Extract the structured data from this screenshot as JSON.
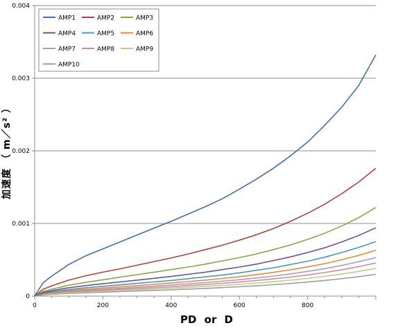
{
  "chart_data": {
    "type": "line",
    "title": "",
    "xlabel": "PD or D",
    "ylabel": "加速度 （ m／s² ）",
    "xlim": [
      0,
      1000
    ],
    "ylim": [
      0,
      0.004
    ],
    "x_ticks": [
      "0",
      "200",
      "400",
      "600",
      "800"
    ],
    "y_ticks": [
      "0",
      "0.001",
      "0.002",
      "0.003",
      "0.004"
    ],
    "x": [
      0,
      25,
      50,
      100,
      150,
      200,
      250,
      300,
      350,
      400,
      450,
      500,
      550,
      600,
      650,
      700,
      750,
      800,
      850,
      900,
      950,
      1000
    ],
    "grid": "horizontal",
    "legend_position": "top-left",
    "series": [
      {
        "name": "AMP1",
        "color": "#3f6fad",
        "values": [
          0,
          0.000185,
          0.000275,
          0.000435,
          0.000555,
          0.00065,
          0.000745,
          0.00084,
          0.000935,
          0.00103,
          0.00113,
          0.00123,
          0.00134,
          0.00147,
          0.00161,
          0.00176,
          0.00193,
          0.00212,
          0.00235,
          0.0026,
          0.0029,
          0.00332
        ]
      },
      {
        "name": "AMP2",
        "color": "#b5403a",
        "values": [
          0,
          9.5e-05,
          0.00014,
          0.00022,
          0.00028,
          0.00033,
          0.000375,
          0.000425,
          0.000475,
          0.000525,
          0.00058,
          0.00064,
          0.0007,
          0.00077,
          0.000845,
          0.00093,
          0.00103,
          0.00114,
          0.001265,
          0.00141,
          0.00157,
          0.00176
        ]
      },
      {
        "name": "AMP3",
        "color": "#84a840",
        "values": [
          0,
          6.5e-05,
          9.5e-05,
          0.00015,
          0.00019,
          0.000225,
          0.00026,
          0.000295,
          0.00033,
          0.000365,
          0.0004,
          0.00044,
          0.000485,
          0.00053,
          0.00058,
          0.00064,
          0.000705,
          0.00078,
          0.000865,
          0.000965,
          0.00108,
          0.00122
        ]
      },
      {
        "name": "AMP4",
        "color": "#6c4f94",
        "values": [
          0,
          5e-05,
          7.5e-05,
          0.000115,
          0.000145,
          0.00017,
          0.000195,
          0.00022,
          0.000245,
          0.00027,
          0.0003,
          0.00033,
          0.000365,
          0.0004,
          0.00044,
          0.00049,
          0.00054,
          0.0006,
          0.000665,
          0.000745,
          0.000835,
          0.00094
        ]
      },
      {
        "name": "AMP5",
        "color": "#3f9cbf",
        "values": [
          0,
          4e-05,
          6e-05,
          9e-05,
          0.000115,
          0.000135,
          0.000155,
          0.000175,
          0.000195,
          0.000215,
          0.00024,
          0.000265,
          0.00029,
          0.00032,
          0.000355,
          0.00039,
          0.000435,
          0.00048,
          0.000535,
          0.0006,
          0.00067,
          0.00075
        ]
      },
      {
        "name": "AMP6",
        "color": "#ee8a2d",
        "values": [
          0,
          3.3e-05,
          5e-05,
          7.5e-05,
          9.5e-05,
          0.000112,
          0.000128,
          0.000145,
          0.000162,
          0.00018,
          0.0002,
          0.00022,
          0.000243,
          0.000268,
          0.000296,
          0.000327,
          0.000362,
          0.000402,
          0.000447,
          0.0005,
          0.00056,
          0.00063
        ]
      },
      {
        "name": "AMP7",
        "color": "#a59ad0",
        "values": [
          0,
          2.8e-05,
          4.2e-05,
          6.4e-05,
          8.1e-05,
          9.5e-05,
          0.000108,
          0.000122,
          0.000137,
          0.000152,
          0.000169,
          0.000186,
          0.000205,
          0.000226,
          0.00025,
          0.000276,
          0.000306,
          0.00034,
          0.000378,
          0.000423,
          0.000474,
          0.00053
        ]
      },
      {
        "name": "AMP8",
        "color": "#d98b8a",
        "values": [
          0,
          2.4e-05,
          3.6e-05,
          5.5e-05,
          6.9e-05,
          8.1e-05,
          9.3e-05,
          0.000105,
          0.000117,
          0.00013,
          0.000145,
          0.00016,
          0.000176,
          0.000194,
          0.000214,
          0.000237,
          0.000262,
          0.000291,
          0.000324,
          0.000363,
          0.000406,
          0.000455
        ]
      },
      {
        "name": "AMP9",
        "color": "#b9cf88",
        "values": [
          0,
          2e-05,
          3e-05,
          4.6e-05,
          5.8e-05,
          6.8e-05,
          7.8e-05,
          8.8e-05,
          9.8e-05,
          0.000109,
          0.000121,
          0.000134,
          0.000147,
          0.000162,
          0.000179,
          0.000198,
          0.000219,
          0.000243,
          0.000271,
          0.000303,
          0.00034,
          0.00038
        ]
      },
      {
        "name": "AMP10",
        "color": "#9e9e9e",
        "values": [
          0,
          1.6e-05,
          2.4e-05,
          3.7e-05,
          4.6e-05,
          5.4e-05,
          6.2e-05,
          7e-05,
          7.8e-05,
          8.7e-05,
          9.6e-05,
          0.000106,
          0.000117,
          0.000129,
          0.000142,
          0.000157,
          0.000174,
          0.000193,
          0.000215,
          0.00024,
          0.000268,
          0.0003
        ]
      }
    ]
  }
}
